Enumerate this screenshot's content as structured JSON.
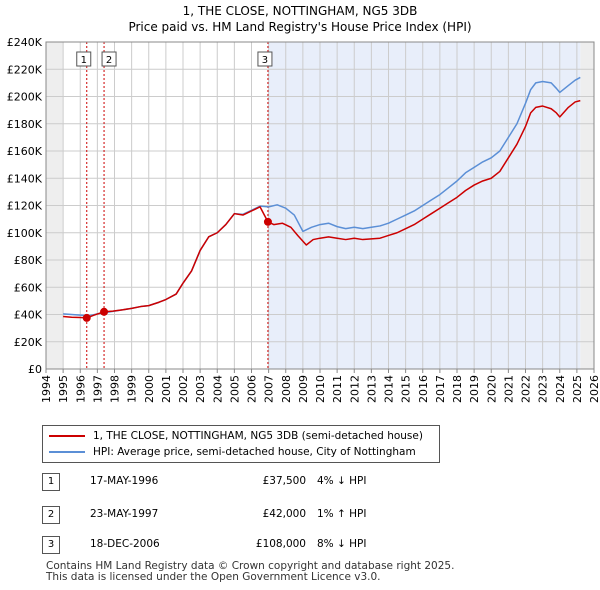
{
  "chart_data": {
    "type": "line",
    "title": "1, THE CLOSE, NOTTINGHAM, NG5 3DB",
    "subtitle": "Price paid vs. HM Land Registry's House Price Index (HPI)",
    "xlim": [
      1994,
      2026
    ],
    "ylim": [
      0,
      240000
    ],
    "x_ticks": [
      "1994",
      "1995",
      "1996",
      "1997",
      "1998",
      "1999",
      "2000",
      "2001",
      "2002",
      "2003",
      "2004",
      "2005",
      "2006",
      "2007",
      "2008",
      "2009",
      "2010",
      "2011",
      "2012",
      "2013",
      "2014",
      "2015",
      "2016",
      "2017",
      "2018",
      "2019",
      "2020",
      "2021",
      "2022",
      "2023",
      "2024",
      "2025",
      "2026"
    ],
    "y_ticks": [
      "£0",
      "£20K",
      "£40K",
      "£60K",
      "£80K",
      "£100K",
      "£120K",
      "£140K",
      "£160K",
      "£180K",
      "£200K",
      "£220K",
      "£240K"
    ],
    "y_tick_values": [
      0,
      20000,
      40000,
      60000,
      80000,
      100000,
      120000,
      140000,
      160000,
      180000,
      200000,
      220000,
      240000
    ],
    "data_start_year": 1995.0,
    "data_end_year": 2025.2,
    "series": [
      {
        "name": "1, THE CLOSE, NOTTINGHAM, NG5 3DB (semi-detached house)",
        "color": "#cc0000",
        "points": [
          [
            1995.0,
            38500
          ],
          [
            1995.5,
            38000
          ],
          [
            1996.0,
            37800
          ],
          [
            1996.38,
            37500
          ],
          [
            1996.8,
            39500
          ],
          [
            1997.39,
            42000
          ],
          [
            1997.9,
            42500
          ],
          [
            1998.5,
            43500
          ],
          [
            1999.0,
            44500
          ],
          [
            1999.6,
            46000
          ],
          [
            2000.0,
            46500
          ],
          [
            2000.6,
            49000
          ],
          [
            2001.0,
            51000
          ],
          [
            2001.6,
            55000
          ],
          [
            2002.0,
            63000
          ],
          [
            2002.5,
            72000
          ],
          [
            2003.0,
            87000
          ],
          [
            2003.5,
            97000
          ],
          [
            2004.0,
            100000
          ],
          [
            2004.5,
            106000
          ],
          [
            2005.0,
            114000
          ],
          [
            2005.5,
            113000
          ],
          [
            2006.0,
            116000
          ],
          [
            2006.5,
            119000
          ],
          [
            2006.96,
            108000
          ],
          [
            2007.3,
            106000
          ],
          [
            2007.8,
            107000
          ],
          [
            2008.3,
            104000
          ],
          [
            2008.7,
            98000
          ],
          [
            2009.2,
            91000
          ],
          [
            2009.6,
            95000
          ],
          [
            2010.0,
            96000
          ],
          [
            2010.5,
            97000
          ],
          [
            2011.0,
            96000
          ],
          [
            2011.5,
            95000
          ],
          [
            2012.0,
            96000
          ],
          [
            2012.5,
            95000
          ],
          [
            2013.0,
            95500
          ],
          [
            2013.5,
            96000
          ],
          [
            2014.0,
            98000
          ],
          [
            2014.5,
            100000
          ],
          [
            2015.0,
            103000
          ],
          [
            2015.5,
            106000
          ],
          [
            2016.0,
            110000
          ],
          [
            2016.5,
            114000
          ],
          [
            2017.0,
            118000
          ],
          [
            2017.5,
            122000
          ],
          [
            2018.0,
            126000
          ],
          [
            2018.5,
            131000
          ],
          [
            2019.0,
            135000
          ],
          [
            2019.5,
            138000
          ],
          [
            2020.0,
            140000
          ],
          [
            2020.5,
            145000
          ],
          [
            2021.0,
            155000
          ],
          [
            2021.5,
            165000
          ],
          [
            2022.0,
            178000
          ],
          [
            2022.3,
            188000
          ],
          [
            2022.6,
            192000
          ],
          [
            2023.0,
            193000
          ],
          [
            2023.5,
            191000
          ],
          [
            2023.8,
            188000
          ],
          [
            2024.0,
            185000
          ],
          [
            2024.5,
            192000
          ],
          [
            2024.9,
            196000
          ],
          [
            2025.2,
            197000
          ]
        ]
      },
      {
        "name": "HPI: Average price, semi-detached house, City of Nottingham",
        "color": "#5b8fd6",
        "points": [
          [
            1995.0,
            40500
          ],
          [
            1995.5,
            40000
          ],
          [
            1996.0,
            39500
          ],
          [
            1996.5,
            39000
          ],
          [
            1997.0,
            40500
          ],
          [
            1997.5,
            41500
          ],
          [
            1998.0,
            42500
          ],
          [
            1998.5,
            43500
          ],
          [
            1999.0,
            44500
          ],
          [
            1999.6,
            46000
          ],
          [
            2000.0,
            46500
          ],
          [
            2000.6,
            49000
          ],
          [
            2001.0,
            51000
          ],
          [
            2001.6,
            55000
          ],
          [
            2002.0,
            63000
          ],
          [
            2002.5,
            72000
          ],
          [
            2003.0,
            87000
          ],
          [
            2003.5,
            97000
          ],
          [
            2004.0,
            100000
          ],
          [
            2004.5,
            106000
          ],
          [
            2005.0,
            114000
          ],
          [
            2005.5,
            113500
          ],
          [
            2006.0,
            116500
          ],
          [
            2006.5,
            119500
          ],
          [
            2007.0,
            119000
          ],
          [
            2007.5,
            120500
          ],
          [
            2008.0,
            118000
          ],
          [
            2008.5,
            113000
          ],
          [
            2009.0,
            101000
          ],
          [
            2009.5,
            104000
          ],
          [
            2010.0,
            106000
          ],
          [
            2010.5,
            107000
          ],
          [
            2011.0,
            104500
          ],
          [
            2011.5,
            103000
          ],
          [
            2012.0,
            104000
          ],
          [
            2012.5,
            103000
          ],
          [
            2013.0,
            104000
          ],
          [
            2013.5,
            105000
          ],
          [
            2014.0,
            107000
          ],
          [
            2014.5,
            110000
          ],
          [
            2015.0,
            113000
          ],
          [
            2015.5,
            116000
          ],
          [
            2016.0,
            120000
          ],
          [
            2016.5,
            124000
          ],
          [
            2017.0,
            128000
          ],
          [
            2017.5,
            133000
          ],
          [
            2018.0,
            138000
          ],
          [
            2018.5,
            144000
          ],
          [
            2019.0,
            148000
          ],
          [
            2019.5,
            152000
          ],
          [
            2020.0,
            155000
          ],
          [
            2020.5,
            160000
          ],
          [
            2021.0,
            170000
          ],
          [
            2021.5,
            180000
          ],
          [
            2022.0,
            195000
          ],
          [
            2022.3,
            205000
          ],
          [
            2022.6,
            210000
          ],
          [
            2023.0,
            211000
          ],
          [
            2023.5,
            210000
          ],
          [
            2023.8,
            206000
          ],
          [
            2024.0,
            203000
          ],
          [
            2024.5,
            208000
          ],
          [
            2024.9,
            212000
          ],
          [
            2025.2,
            214000
          ]
        ]
      }
    ],
    "shaded_region": [
      2006.96,
      2025.2
    ],
    "sales": [
      {
        "label": "1",
        "x": 1996.38,
        "price": 37500,
        "date": "17-MAY-1996",
        "price_text": "£37,500",
        "hpi_text": "4% ↓ HPI"
      },
      {
        "label": "2",
        "x": 1997.39,
        "price": 42000,
        "date": "23-MAY-1997",
        "price_text": "£42,000",
        "hpi_text": "1% ↑ HPI"
      },
      {
        "label": "3",
        "x": 2006.96,
        "price": 108000,
        "date": "18-DEC-2006",
        "price_text": "£108,000",
        "hpi_text": "8% ↓ HPI"
      }
    ]
  },
  "legend": {
    "property_label": "1, THE CLOSE, NOTTINGHAM, NG5 3DB (semi-detached house)",
    "hpi_label": "HPI: Average price, semi-detached house, City of Nottingham"
  },
  "footer": {
    "line1": "Contains HM Land Registry data © Crown copyright and database right 2025.",
    "line2": "This data is licensed under the Open Government Licence v3.0."
  }
}
